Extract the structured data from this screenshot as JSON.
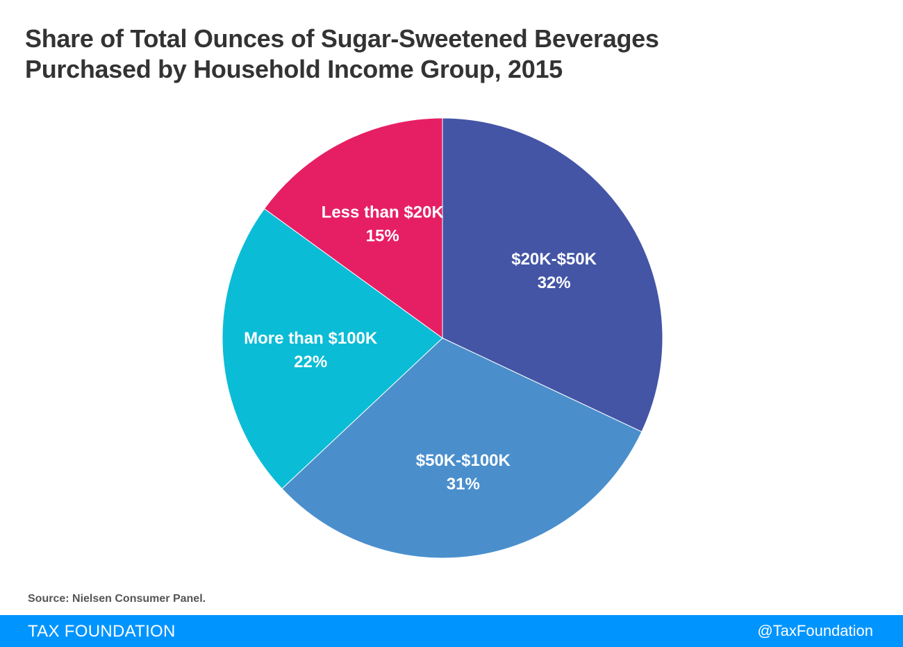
{
  "title": {
    "line1": "Share of Total Ounces of Sugar-Sweetened Beverages",
    "line2": "Purchased by Household Income Group, 2015"
  },
  "chart_data": {
    "type": "pie",
    "title": "Share of Total Ounces of Sugar-Sweetened Beverages Purchased by Household Income Group, 2015",
    "start_angle_deg": 0,
    "direction": "clockwise",
    "slices": [
      {
        "label": "$20K-$50K",
        "value": 32,
        "value_label": "32%",
        "color": "#4455a6"
      },
      {
        "label": "$50K-$100K",
        "value": 31,
        "value_label": "31%",
        "color": "#4a8fcc"
      },
      {
        "label": "More than $100K",
        "value": 22,
        "value_label": "22%",
        "color": "#0bbcd6"
      },
      {
        "label": "Less than $20K",
        "value": 15,
        "value_label": "15%",
        "color": "#e61f65"
      }
    ]
  },
  "source": "Source: Nielsen Consumer Panel.",
  "footer": {
    "brand": "TAX FOUNDATION",
    "handle": "@TaxFoundation"
  },
  "colors": {
    "footer_bg": "#0094ff",
    "title_text": "#333333"
  }
}
